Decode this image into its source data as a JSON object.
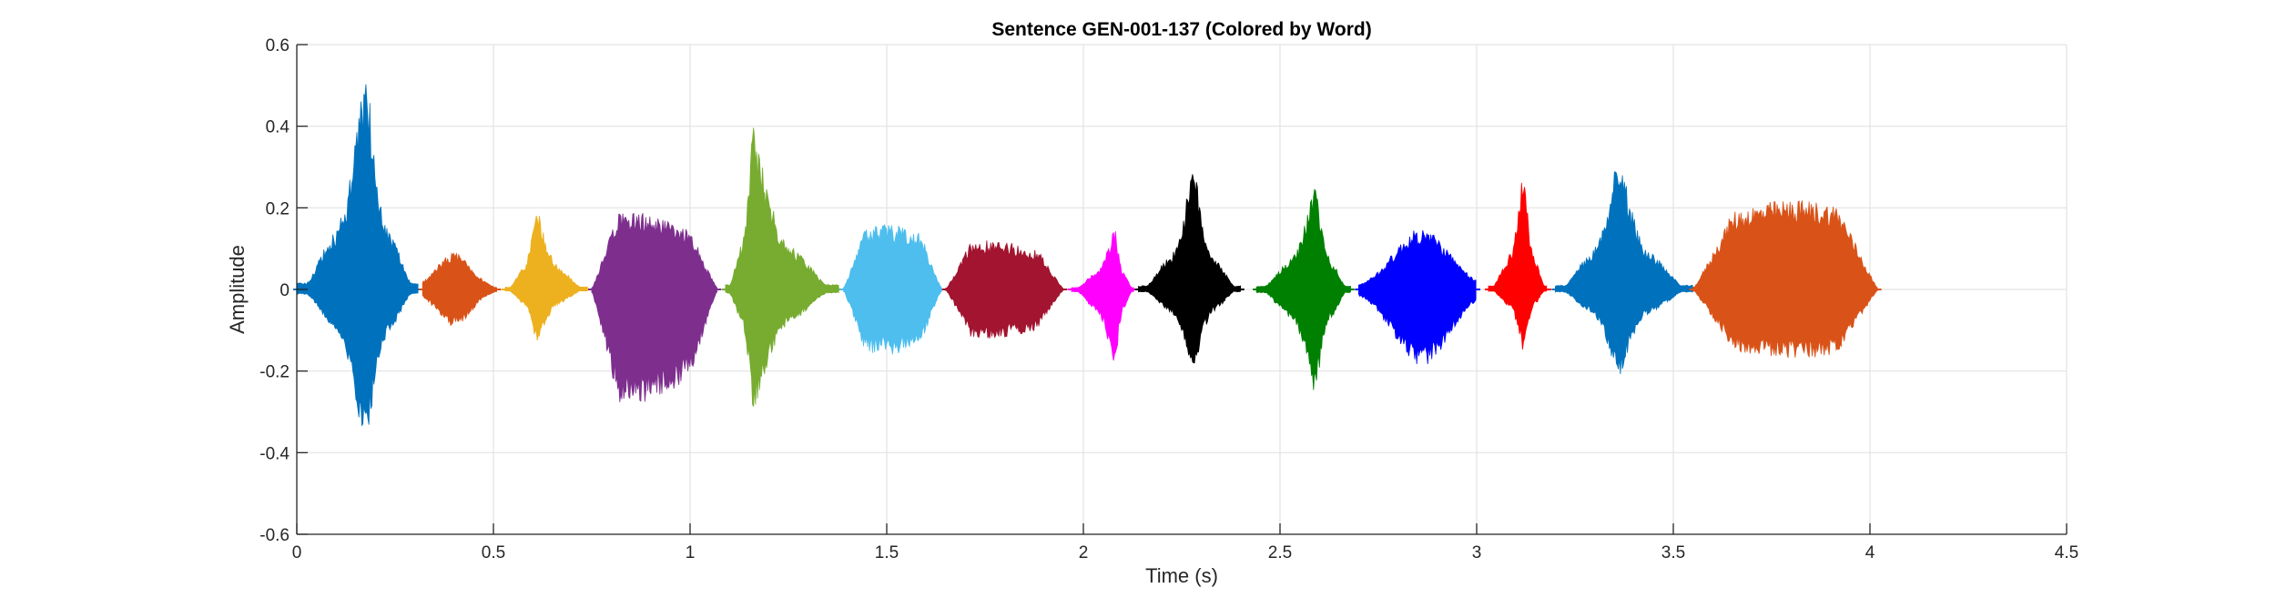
{
  "chart_data": {
    "type": "line",
    "title": "Sentence GEN-001-137 (Colored by Word)",
    "xlabel": "Time (s)",
    "ylabel": "Amplitude",
    "xlim": [
      0,
      4.5
    ],
    "ylim": [
      -0.6,
      0.6
    ],
    "grid": true,
    "x_ticks": [
      0,
      0.5,
      1,
      1.5,
      2,
      2.5,
      3,
      3.5,
      4,
      4.5
    ],
    "x_tick_labels": [
      "0",
      "0.5",
      "1",
      "1.5",
      "2",
      "2.5",
      "3",
      "3.5",
      "4",
      "4.5"
    ],
    "y_ticks": [
      -0.6,
      -0.4,
      -0.2,
      0,
      0.2,
      0.4,
      0.6
    ],
    "y_tick_labels": [
      "-0.6",
      "-0.4",
      "-0.2",
      "0",
      "0.2",
      "0.4",
      "0.6"
    ],
    "series": [
      {
        "color": "#0072BD",
        "start": 0.0,
        "end": 0.31,
        "peak_time": 0.175,
        "max": 0.56,
        "min": -0.4,
        "shape": "sharp"
      },
      {
        "color": "#D95319",
        "start": 0.32,
        "end": 0.51,
        "peak_time": 0.4,
        "max": 0.09,
        "min": -0.09,
        "shape": "round"
      },
      {
        "color": "#EDB120",
        "start": 0.53,
        "end": 0.74,
        "peak_time": 0.61,
        "max": 0.21,
        "min": -0.14,
        "shape": "sharp"
      },
      {
        "color": "#7E2F8E",
        "start": 0.75,
        "end": 1.07,
        "peak_time": 0.85,
        "max": 0.19,
        "min": -0.28,
        "shape": "plateau"
      },
      {
        "color": "#77AC30",
        "start": 1.09,
        "end": 1.38,
        "peak_time": 1.16,
        "max": 0.41,
        "min": -0.31,
        "shape": "sharp"
      },
      {
        "color": "#4DBEEE",
        "start": 1.39,
        "end": 1.64,
        "peak_time": 1.5,
        "max": 0.16,
        "min": -0.16,
        "shape": "plateau"
      },
      {
        "color": "#A2142F",
        "start": 1.65,
        "end": 1.95,
        "peak_time": 1.76,
        "max": 0.12,
        "min": -0.12,
        "shape": "plateau"
      },
      {
        "color": "#FF00FF",
        "start": 1.97,
        "end": 2.13,
        "peak_time": 2.08,
        "max": 0.16,
        "min": -0.2,
        "shape": "sharp"
      },
      {
        "color": "#000000",
        "start": 2.14,
        "end": 2.4,
        "peak_time": 2.28,
        "max": 0.31,
        "min": -0.21,
        "shape": "sharp"
      },
      {
        "color": "#008000",
        "start": 2.44,
        "end": 2.68,
        "peak_time": 2.59,
        "max": 0.27,
        "min": -0.27,
        "shape": "sharp"
      },
      {
        "color": "#0000FF",
        "start": 2.7,
        "end": 3.0,
        "peak_time": 2.86,
        "max": 0.15,
        "min": -0.19,
        "shape": "round"
      },
      {
        "color": "#FF0000",
        "start": 3.03,
        "end": 3.18,
        "peak_time": 3.12,
        "max": 0.31,
        "min": -0.16,
        "shape": "sharp"
      },
      {
        "color": "#0072BD",
        "start": 3.2,
        "end": 3.55,
        "peak_time": 3.36,
        "max": 0.34,
        "min": -0.22,
        "shape": "sharp"
      },
      {
        "color": "#D95319",
        "start": 3.55,
        "end": 4.02,
        "peak_time": 3.81,
        "max": 0.22,
        "min": -0.17,
        "shape": "plateau"
      }
    ]
  }
}
